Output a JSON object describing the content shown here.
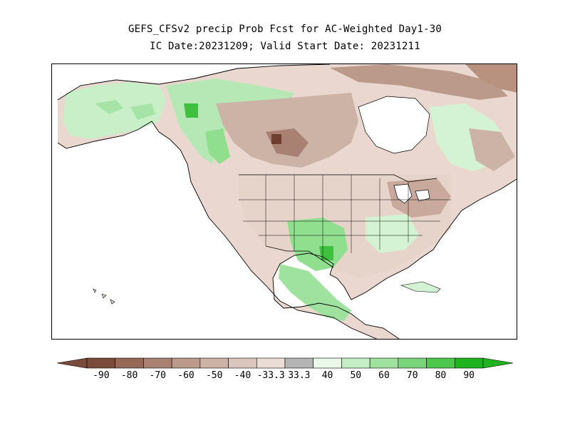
{
  "title": {
    "line1": "GEFS_CFSv2 precip Prob Fcst for AC-Weighted Day1-30",
    "line2": "IC Date:20231209; Valid Start Date: 20231211"
  },
  "colorbar": {
    "labels": [
      "-90",
      "-80",
      "-70",
      "-60",
      "-50",
      "-40",
      "-33.3",
      "33.3",
      "40",
      "50",
      "60",
      "70",
      "80",
      "90"
    ],
    "colors": [
      "#7a4a3a",
      "#956858",
      "#a98172",
      "#bb9a8c",
      "#cdb2a6",
      "#dbc6bd",
      "#ebdcd5",
      "#b4b4b4",
      "#eaf8ea",
      "#c6eec6",
      "#9fe29f",
      "#7ad57a",
      "#4dc84d",
      "#1fb41f"
    ]
  },
  "legend_colors": {
    "brown_dark": "#6e3f30",
    "brown_mid": "#b08877",
    "brown_light": "#e6d3ca",
    "green_light": "#d4f3d4",
    "green_mid": "#8fdf8f",
    "green_dark": "#3fc03f",
    "water": "#ffffff"
  }
}
